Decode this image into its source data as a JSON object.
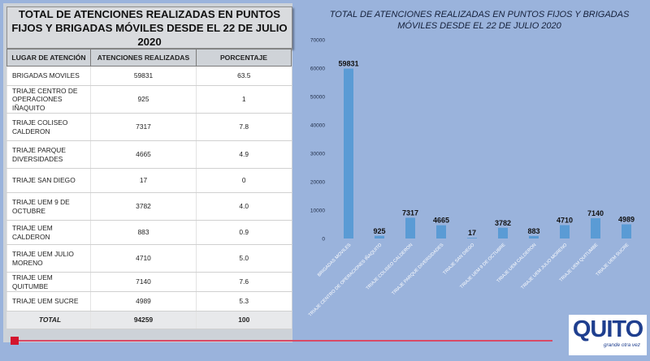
{
  "table": {
    "title": "TOTAL DE ATENCIONES REALIZADAS EN PUNTOS FIJOS Y BRIGADAS MÓVILES DESDE EL 22 DE JULIO 2020",
    "headers": [
      "LUGAR DE ATENCIÓN",
      "ATENCIONES REALIZADAS",
      "PORCENTAJE"
    ],
    "rows": [
      {
        "place": "BRIGADAS MOVILES",
        "count": "59831",
        "pct": "63.5"
      },
      {
        "place": "TRIAJE CENTRO DE OPERACIONES IÑAQUITO",
        "count": "925",
        "pct": "1"
      },
      {
        "place": "TRIAJE COLISEO CALDERON",
        "count": "7317",
        "pct": "7.8"
      },
      {
        "place": "TRIAJE PARQUE DIVERSIDADES",
        "count": "4665",
        "pct": "4.9"
      },
      {
        "place": "TRIAJE SAN DIEGO",
        "count": "17",
        "pct": "0"
      },
      {
        "place": "TRIAJE UEM 9 DE OCTUBRE",
        "count": "3782",
        "pct": "4.0"
      },
      {
        "place": "TRIAJE UEM CALDERON",
        "count": "883",
        "pct": "0.9"
      },
      {
        "place": "TRIAJE UEM JULIO MORENO",
        "count": "4710",
        "pct": "5.0"
      },
      {
        "place": "TRIAJE UEM QUITUMBE",
        "count": "7140",
        "pct": "7.6"
      },
      {
        "place": "TRIAJE UEM SUCRE",
        "count": "4989",
        "pct": "5.3"
      }
    ],
    "total": {
      "place": "TOTAL",
      "count": "94259",
      "pct": "100"
    }
  },
  "chart_data": {
    "type": "bar",
    "title": "TOTAL DE ATENCIONES REALIZADAS EN PUNTOS FIJOS Y BRIGADAS MÓVILES DESDE EL 22 DE JULIO 2020",
    "categories": [
      "BRIGADAS MOVILES",
      "TRIAJE CENTRO DE OPERACIONES IÑAQUITO",
      "TRIAJE COLISEO CALDERON",
      "TRIAJE PARQUE DIVERSIDADES",
      "TRIAJE SAN DIEGO",
      "TRIAJE UEM 9 DE OCTUBRE",
      "TRIAJE UEM CALDERON",
      "TRIAJE UEM JULIO MORENO",
      "TRIAJE UEM QUITUMBE",
      "TRIAJE UEM SUCRE"
    ],
    "values": [
      59831,
      925,
      7317,
      4665,
      17,
      3782,
      883,
      4710,
      7140,
      4989
    ],
    "ylim": [
      0,
      70000
    ],
    "yticks": [
      0,
      10000,
      20000,
      30000,
      40000,
      50000,
      60000,
      70000
    ],
    "xlabel": "",
    "ylabel": "",
    "grid": false,
    "legend": "none",
    "bar_color": "#5a9bd5"
  },
  "logo": {
    "text": "QUITO",
    "slogan": "grande otra vez"
  }
}
